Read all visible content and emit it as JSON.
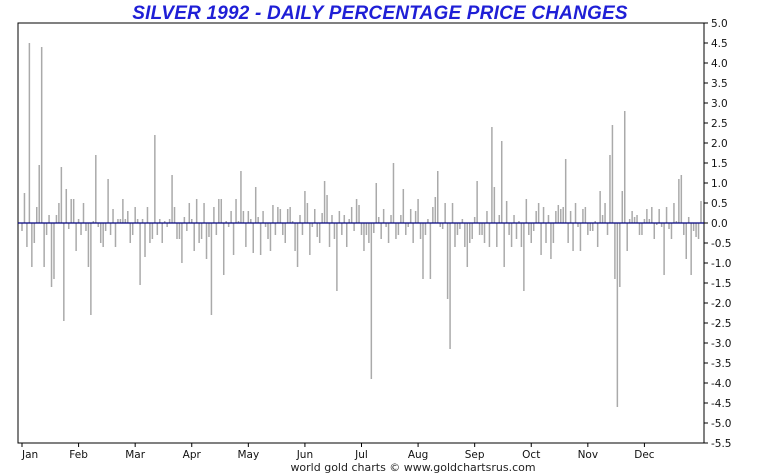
{
  "chart_data": {
    "type": "bar",
    "title": "SILVER 1992 - DAILY PERCENTAGE PRICE CHANGES",
    "xlabel": "",
    "ylabel": "",
    "ylim": [
      -5.5,
      5.0
    ],
    "y_ticks": [
      "5.0",
      "4.5",
      "4.0",
      "3.5",
      "3.0",
      "2.5",
      "2.0",
      "1.5",
      "1.0",
      "0.5",
      "0.0",
      "-0.5",
      "-1.0",
      "-1.5",
      "-2.0",
      "-2.5",
      "-3.0",
      "-3.5",
      "-4.0",
      "-4.5",
      "-5.0",
      "-5.5"
    ],
    "x_tick_labels": [
      "Jan",
      "Feb",
      "Mar",
      "Apr",
      "May",
      "Jun",
      "Jul",
      "Aug",
      "Sep",
      "Oct",
      "Nov",
      "Dec"
    ],
    "grid": false,
    "zero_line_color": "#00007f",
    "bar_color": "#aaaaaa",
    "title_color": "#1f1fd6",
    "series": [
      {
        "values": [
          -0.2,
          0.75,
          -0.6,
          4.5,
          -1.1,
          -0.5,
          0.4,
          1.45,
          4.4,
          -1.1,
          -0.3,
          0.2,
          -1.6,
          -1.4,
          0.2,
          0.5,
          1.4,
          -2.45,
          0.85,
          -0.15,
          0.6,
          0.6,
          -0.7,
          0.1,
          -0.3,
          0.5,
          -0.2,
          -1.1,
          -2.3,
          0.05,
          1.7,
          -0.1,
          -0.5,
          -0.6,
          -0.2,
          1.1,
          -0.3,
          0.35,
          -0.6,
          0.1,
          0.1,
          0.6,
          0.1,
          0.3,
          -0.5,
          -0.3,
          0.4,
          0.1,
          -1.55,
          0.1,
          -0.85,
          0.4,
          -0.5,
          -0.4,
          2.2,
          -0.3,
          0.1,
          -0.5,
          0.05,
          -0.1,
          0.1,
          1.2,
          0.4,
          -0.4,
          -0.4,
          -1.0,
          0.15,
          -0.2,
          0.5,
          0.1,
          -0.7,
          0.6,
          -0.5,
          -0.4,
          0.5,
          -0.9,
          -0.35,
          -2.3,
          0.4,
          -0.3,
          0.6,
          0.6,
          -1.3,
          0.05,
          -0.1,
          0.3,
          -0.8,
          0.6,
          0.05,
          1.3,
          0.3,
          -0.6,
          0.3,
          0.1,
          -0.75,
          0.9,
          0.15,
          -0.8,
          0.3,
          -0.1,
          -0.4,
          -0.7,
          0.45,
          -0.3,
          0.4,
          0.35,
          -0.3,
          -0.5,
          0.35,
          0.4,
          0.05,
          -0.7,
          -1.1,
          0.2,
          -0.3,
          0.8,
          0.5,
          -0.8,
          -0.1,
          0.35,
          -0.35,
          -0.5,
          0.25,
          1.05,
          0.7,
          -0.6,
          0.2,
          -0.4,
          -1.7,
          0.3,
          -0.3,
          0.2,
          -0.6,
          0.1,
          0.4,
          -0.2,
          0.6,
          0.45,
          -0.3,
          -0.7,
          -0.3,
          -0.5,
          -3.9,
          -0.25,
          1.0,
          0.15,
          -0.4,
          0.35,
          -0.1,
          -0.5,
          0.2,
          1.5,
          -0.4,
          -0.3,
          0.2,
          0.85,
          -0.3,
          -0.1,
          0.35,
          -0.5,
          0.3,
          0.6,
          -0.4,
          -1.4,
          -0.3,
          0.1,
          -1.4,
          0.4,
          0.65,
          1.3,
          -0.1,
          -0.15,
          0.5,
          -1.9,
          -3.15,
          0.5,
          -0.6,
          -0.3,
          -0.15,
          0.1,
          -0.6,
          -1.1,
          -0.5,
          -0.4,
          0.15,
          1.05,
          -0.3,
          -0.3,
          -0.5,
          0.3,
          -0.6,
          2.4,
          0.9,
          -0.6,
          0.2,
          2.05,
          -1.1,
          0.55,
          -0.3,
          -0.6,
          0.2,
          -0.4,
          0.05,
          -0.6,
          -1.7,
          0.6,
          -0.3,
          -0.5,
          -0.2,
          0.3,
          0.5,
          -0.8,
          0.4,
          -0.5,
          0.2,
          -0.9,
          -0.5,
          0.3,
          0.45,
          0.35,
          0.4,
          1.6,
          -0.5,
          0.3,
          -0.7,
          0.5,
          -0.1,
          -0.7,
          0.35,
          0.4,
          -0.3,
          -0.2,
          -0.2,
          0.05,
          -0.6,
          0.8,
          0.2,
          0.5,
          -0.3,
          1.7,
          2.45,
          -1.4,
          -4.6,
          -1.6,
          0.8,
          2.8,
          -0.7,
          0.1,
          0.3,
          0.15,
          0.2,
          -0.3,
          -0.3,
          0.1,
          0.35,
          0.1,
          0.4,
          -0.4,
          -0.05,
          0.35,
          -0.1,
          -1.3,
          0.4,
          -0.15,
          -0.4,
          0.5,
          0.05,
          1.1,
          1.2,
          -0.3,
          -0.9,
          0.15,
          -1.3,
          -0.2,
          -0.35,
          -0.4,
          0.55
        ]
      }
    ]
  },
  "footer": "world gold charts © www.goldchartsrus.com"
}
